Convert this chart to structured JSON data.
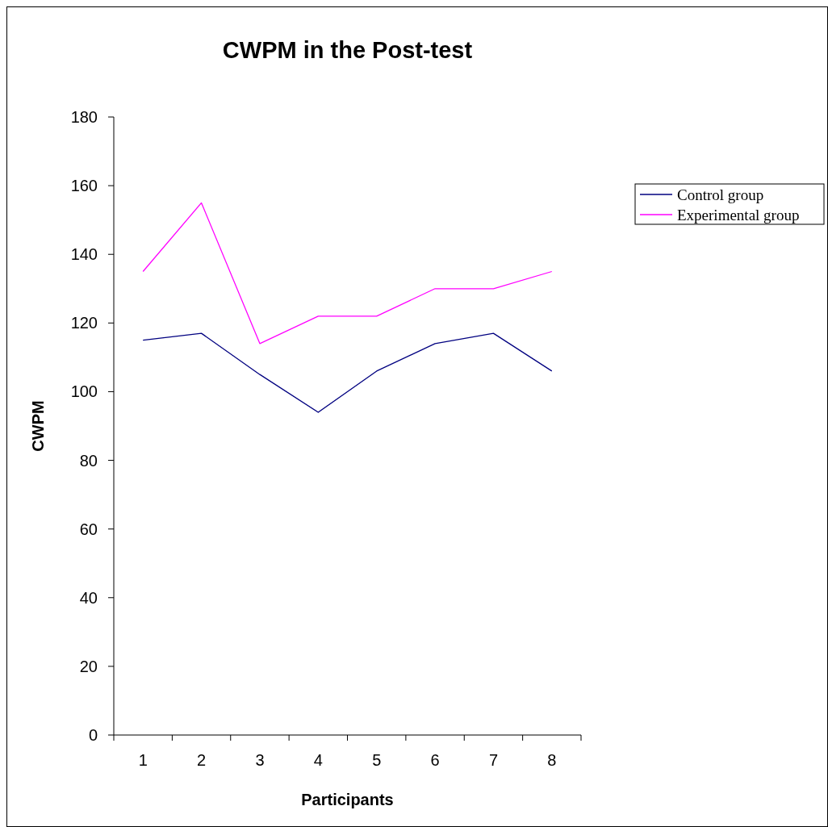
{
  "chart_data": {
    "type": "line",
    "title": "CWPM in the Post-test",
    "xlabel": "Participants",
    "ylabel": "CWPM",
    "categories": [
      "1",
      "2",
      "3",
      "4",
      "5",
      "6",
      "7",
      "8"
    ],
    "series": [
      {
        "name": "Control group",
        "color": "#000080",
        "values": [
          115,
          117,
          105,
          94,
          106,
          114,
          117,
          106
        ]
      },
      {
        "name": "Experimental group",
        "color": "#ff00ff",
        "values": [
          135,
          155,
          114,
          122,
          122,
          130,
          130,
          135
        ]
      }
    ],
    "ylim": [
      0,
      180
    ],
    "yticks": [
      0,
      20,
      40,
      60,
      80,
      100,
      120,
      140,
      160,
      180
    ],
    "grid": false,
    "legend": "right",
    "marker": "none",
    "line_style": "solid"
  }
}
